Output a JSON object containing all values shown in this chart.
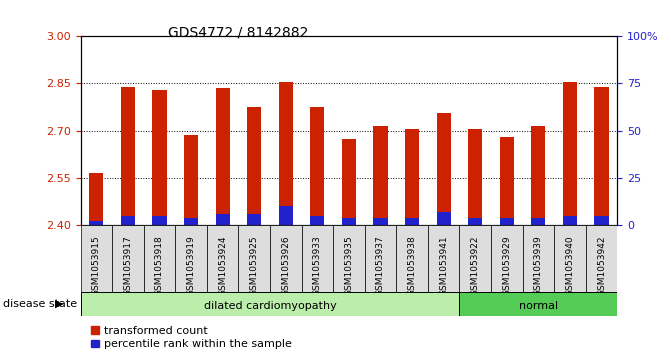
{
  "title": "GDS4772 / 8142882",
  "samples": [
    "GSM1053915",
    "GSM1053917",
    "GSM1053918",
    "GSM1053919",
    "GSM1053924",
    "GSM1053925",
    "GSM1053926",
    "GSM1053933",
    "GSM1053935",
    "GSM1053937",
    "GSM1053938",
    "GSM1053941",
    "GSM1053922",
    "GSM1053929",
    "GSM1053939",
    "GSM1053940",
    "GSM1053942"
  ],
  "transformed_count": [
    2.565,
    2.84,
    2.83,
    2.685,
    2.835,
    2.775,
    2.855,
    2.775,
    2.675,
    2.715,
    2.705,
    2.755,
    2.705,
    2.68,
    2.715,
    2.855,
    2.84
  ],
  "percentile_pct": [
    2,
    5,
    5,
    4,
    6,
    6,
    10,
    5,
    4,
    4,
    4,
    7,
    4,
    4,
    4,
    5,
    5
  ],
  "dilated_count": 12,
  "bar_bottom": 2.4,
  "ylim_left": [
    2.4,
    3.0
  ],
  "ylim_right": [
    0,
    100
  ],
  "yticks_left": [
    2.4,
    2.55,
    2.7,
    2.85,
    3.0
  ],
  "yticks_right": [
    0,
    25,
    50,
    75,
    100
  ],
  "grid_lines": [
    2.55,
    2.7,
    2.85
  ],
  "bar_width": 0.45,
  "red_color": "#CC2200",
  "blue_color": "#2222CC",
  "dilated_bg": "#BBEEAA",
  "normal_bg": "#55CC55",
  "sample_bg": "#DDDDDD",
  "legend_red": "transformed count",
  "legend_blue": "percentile rank within the sample",
  "disease_label": "disease state",
  "dilated_label": "dilated cardiomyopathy",
  "normal_label": "normal"
}
